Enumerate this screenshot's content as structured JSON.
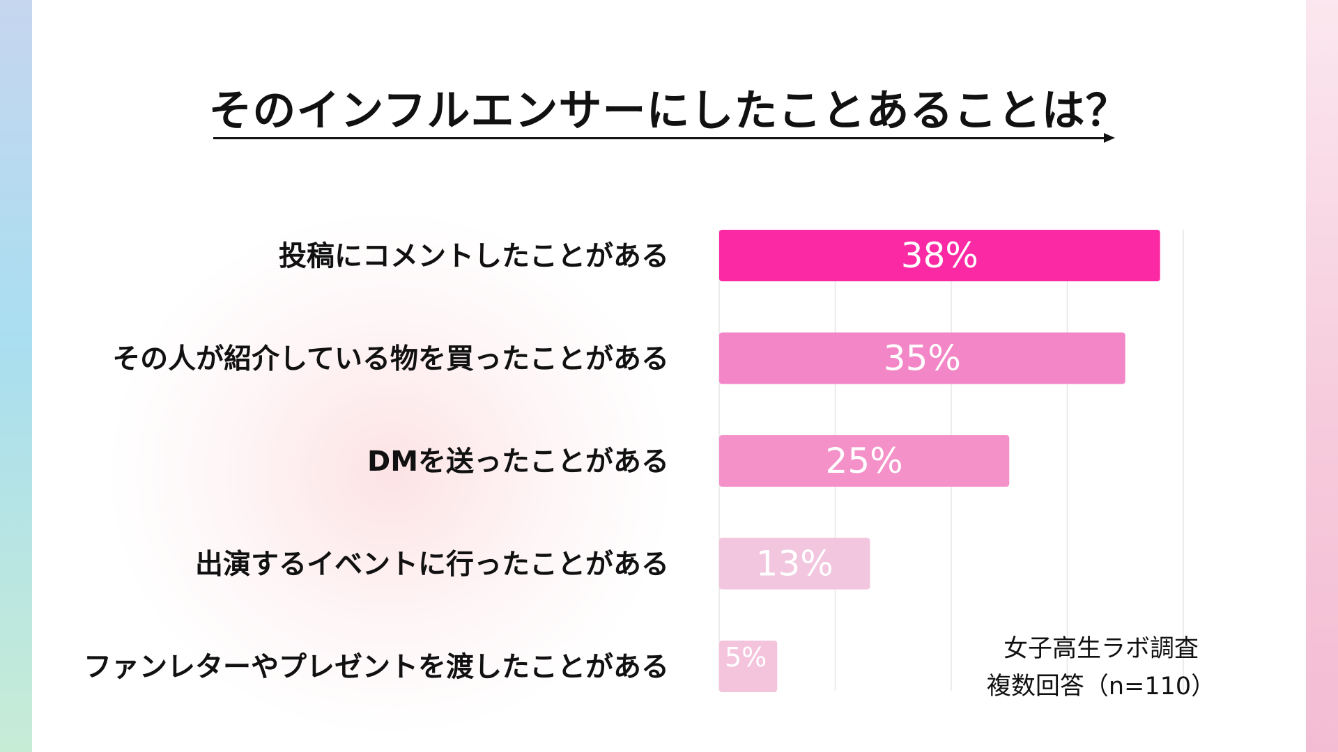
{
  "title": "そのインフルエンサーにしたことあることは？",
  "source": {
    "line1": "女子高生ラボ調査",
    "line2": "複数回答（n=110）"
  },
  "chart_data": {
    "type": "bar",
    "orientation": "horizontal",
    "categories": [
      "投稿にコメントしたことがある",
      "その人が紹介している物を買ったことがある",
      "DMを送ったことがある",
      "出演するイベントに行ったことがある",
      "ファンレター・やプレゼントを渡したことがある"
    ],
    "values": [
      38,
      35,
      25,
      13,
      5
    ],
    "value_labels": [
      "38%",
      "35%",
      "25%",
      "13%",
      "5%"
    ],
    "xlim": [
      0,
      40
    ],
    "grid": true,
    "legend": "none",
    "colors": [
      "#fb2aa4",
      "#f386c6",
      "#f491c9",
      "#f2c6de",
      "#f4c4dc"
    ]
  }
}
